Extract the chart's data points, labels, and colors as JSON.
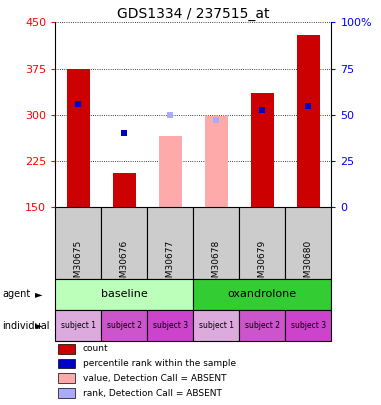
{
  "title": "GDS1334 / 237515_at",
  "samples": [
    "GSM30675",
    "GSM30676",
    "GSM30677",
    "GSM30678",
    "GSM30679",
    "GSM30680"
  ],
  "count_values": [
    375,
    205,
    null,
    null,
    335,
    430
  ],
  "count_absent": [
    null,
    null,
    265,
    298,
    null,
    null
  ],
  "percentile_present": [
    317,
    270,
    null,
    null,
    308,
    315
  ],
  "percentile_absent": [
    null,
    null,
    299,
    291,
    null,
    null
  ],
  "ylim": [
    150,
    450
  ],
  "yticks": [
    150,
    225,
    300,
    375,
    450
  ],
  "y2ticks": [
    0,
    25,
    50,
    75,
    100
  ],
  "y2lim": [
    0,
    100
  ],
  "color_count": "#cc0000",
  "color_percentile": "#0000cc",
  "color_absent_value": "#ffaaaa",
  "color_absent_rank": "#aaaaff",
  "agent_baseline_color": "#bbffbb",
  "agent_oxandrolone_color": "#33cc33",
  "individual_colors": [
    "#ddaadd",
    "#cc55cc",
    "#cc44cc",
    "#ddaadd",
    "#cc55cc",
    "#cc44cc"
  ],
  "agent_labels": [
    "baseline",
    "oxandrolone"
  ],
  "individual_labels": [
    "subject 1",
    "subject 2",
    "subject 3",
    "subject 1",
    "subject 2",
    "subject 3"
  ],
  "legend_items": [
    {
      "label": "count",
      "color": "#cc0000"
    },
    {
      "label": "percentile rank within the sample",
      "color": "#0000cc"
    },
    {
      "label": "value, Detection Call = ABSENT",
      "color": "#ffaaaa"
    },
    {
      "label": "rank, Detection Call = ABSENT",
      "color": "#aaaaff"
    }
  ],
  "bar_width": 0.5,
  "bg_color": "#ffffff",
  "gray_box_color": "#cccccc"
}
